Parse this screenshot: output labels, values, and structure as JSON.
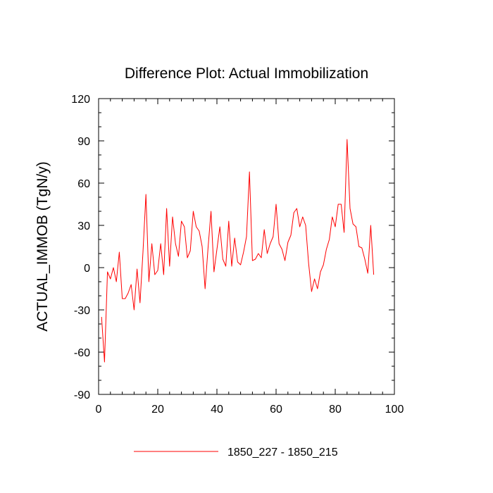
{
  "chart_data": {
    "type": "line",
    "title": "Difference Plot: Actual Immobilization",
    "xlabel": "",
    "ylabel": "ACTUAL_IMMOB  (TgN/y)",
    "xlim": [
      0,
      100
    ],
    "ylim": [
      -90,
      120
    ],
    "xticks": [
      0,
      20,
      40,
      60,
      80,
      100
    ],
    "yticks": [
      -90,
      -60,
      -30,
      0,
      30,
      60,
      90,
      120
    ],
    "xtick_labels": [
      "0",
      "20",
      "40",
      "60",
      "80",
      "100"
    ],
    "ytick_labels": [
      "-90",
      "-60",
      "-30",
      "0",
      "30",
      "60",
      "90",
      "120"
    ],
    "legend_position": "bottom",
    "grid": false,
    "series": [
      {
        "name": "1850_227 - 1850_215",
        "color": "#ff0000",
        "x": [
          1,
          2,
          3,
          4,
          5,
          6,
          7,
          8,
          9,
          10,
          11,
          12,
          13,
          14,
          15,
          16,
          17,
          18,
          19,
          20,
          21,
          22,
          23,
          24,
          25,
          26,
          27,
          28,
          29,
          30,
          31,
          32,
          33,
          34,
          35,
          36,
          37,
          38,
          39,
          40,
          41,
          42,
          43,
          44,
          45,
          46,
          47,
          48,
          49,
          50,
          51,
          52,
          53,
          54,
          55,
          56,
          57,
          58,
          59,
          60,
          61,
          62,
          63,
          64,
          65,
          66,
          67,
          68,
          69,
          70,
          71,
          72,
          73,
          74,
          75,
          76,
          77,
          78,
          79,
          80,
          81,
          82,
          83,
          84,
          85,
          86,
          87,
          88,
          89,
          90,
          91,
          92,
          93
        ],
        "values": [
          -35,
          -67,
          -3,
          -8,
          0,
          -10,
          11,
          -22,
          -22,
          -18,
          -12,
          -30,
          -1,
          -25,
          11,
          52,
          -10,
          17,
          -5,
          -2,
          17,
          -5,
          42,
          1,
          36,
          17,
          8,
          33,
          29,
          7,
          12,
          40,
          29,
          26,
          15,
          -15,
          14,
          40,
          -3,
          13,
          29,
          6,
          1,
          33,
          1,
          21,
          4,
          2,
          11,
          22,
          68,
          5,
          6,
          10,
          7,
          27,
          10,
          17,
          22,
          45,
          17,
          13,
          5,
          18,
          23,
          39,
          42,
          29,
          36,
          30,
          3,
          -17,
          -8,
          -15,
          -3,
          2,
          13,
          20,
          36,
          29,
          45,
          45,
          25,
          91,
          42,
          31,
          29,
          15,
          14,
          6,
          -4,
          30,
          -5
        ]
      }
    ]
  }
}
